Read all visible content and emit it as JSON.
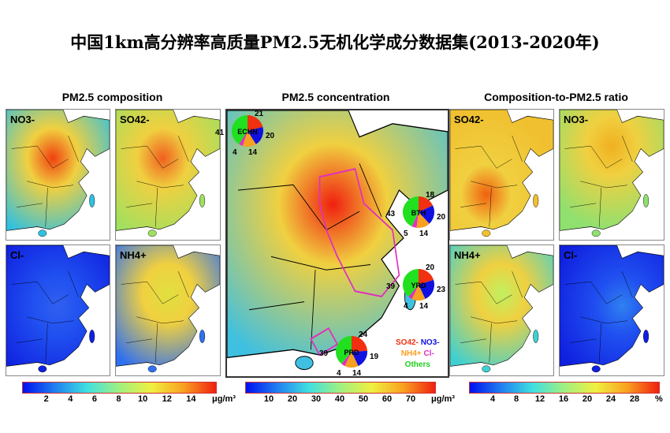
{
  "title": "中国1km高分辨率高质量PM2.5无机化学成分数据集(2013-2020年)",
  "sections": {
    "left": "PM2.5 composition",
    "center": "PM2.5 concentration",
    "right": "Composition-to-PM2.5 ratio"
  },
  "panels": {
    "no3_left": {
      "label": "NO3-"
    },
    "so4_left": {
      "label": "SO42-"
    },
    "cl_left": {
      "label": "Cl-"
    },
    "nh4_left": {
      "label": "NH4+"
    },
    "so4_right": {
      "label": "SO42-"
    },
    "no3_right": {
      "label": "NO3-"
    },
    "nh4_right": {
      "label": "NH4+"
    },
    "cl_right": {
      "label": "Cl-"
    }
  },
  "pies": [
    {
      "region": "ECHN",
      "values": [
        21,
        20,
        14,
        4,
        41
      ]
    },
    {
      "region": "BTH",
      "values": [
        18,
        20,
        14,
        5,
        43
      ]
    },
    {
      "region": "YRD",
      "values": [
        20,
        23,
        14,
        4,
        39
      ]
    },
    {
      "region": "PRD",
      "values": [
        24,
        19,
        14,
        4,
        39
      ]
    }
  ],
  "legend": {
    "so4": "SO42-",
    "no3": "NO3-",
    "nh4": "NH4+",
    "cl": "Cl-",
    "others": "Others"
  },
  "colors": {
    "so4": "#f03010",
    "no3": "#1010e0",
    "nh4": "#f8a020",
    "cl": "#e030c0",
    "others": "#20e020"
  },
  "colorbars": [
    {
      "ticks": [
        "2",
        "4",
        "6",
        "8",
        "10",
        "12",
        "14"
      ],
      "unit": "μg/m³",
      "min": 0,
      "max": 16
    },
    {
      "ticks": [
        "10",
        "20",
        "30",
        "40",
        "50",
        "60",
        "70"
      ],
      "unit": "μg/m³",
      "min": 0,
      "max": 80
    },
    {
      "ticks": [
        "4",
        "8",
        "12",
        "16",
        "20",
        "24",
        "28"
      ],
      "unit": "%",
      "min": 0,
      "max": 32
    }
  ]
}
